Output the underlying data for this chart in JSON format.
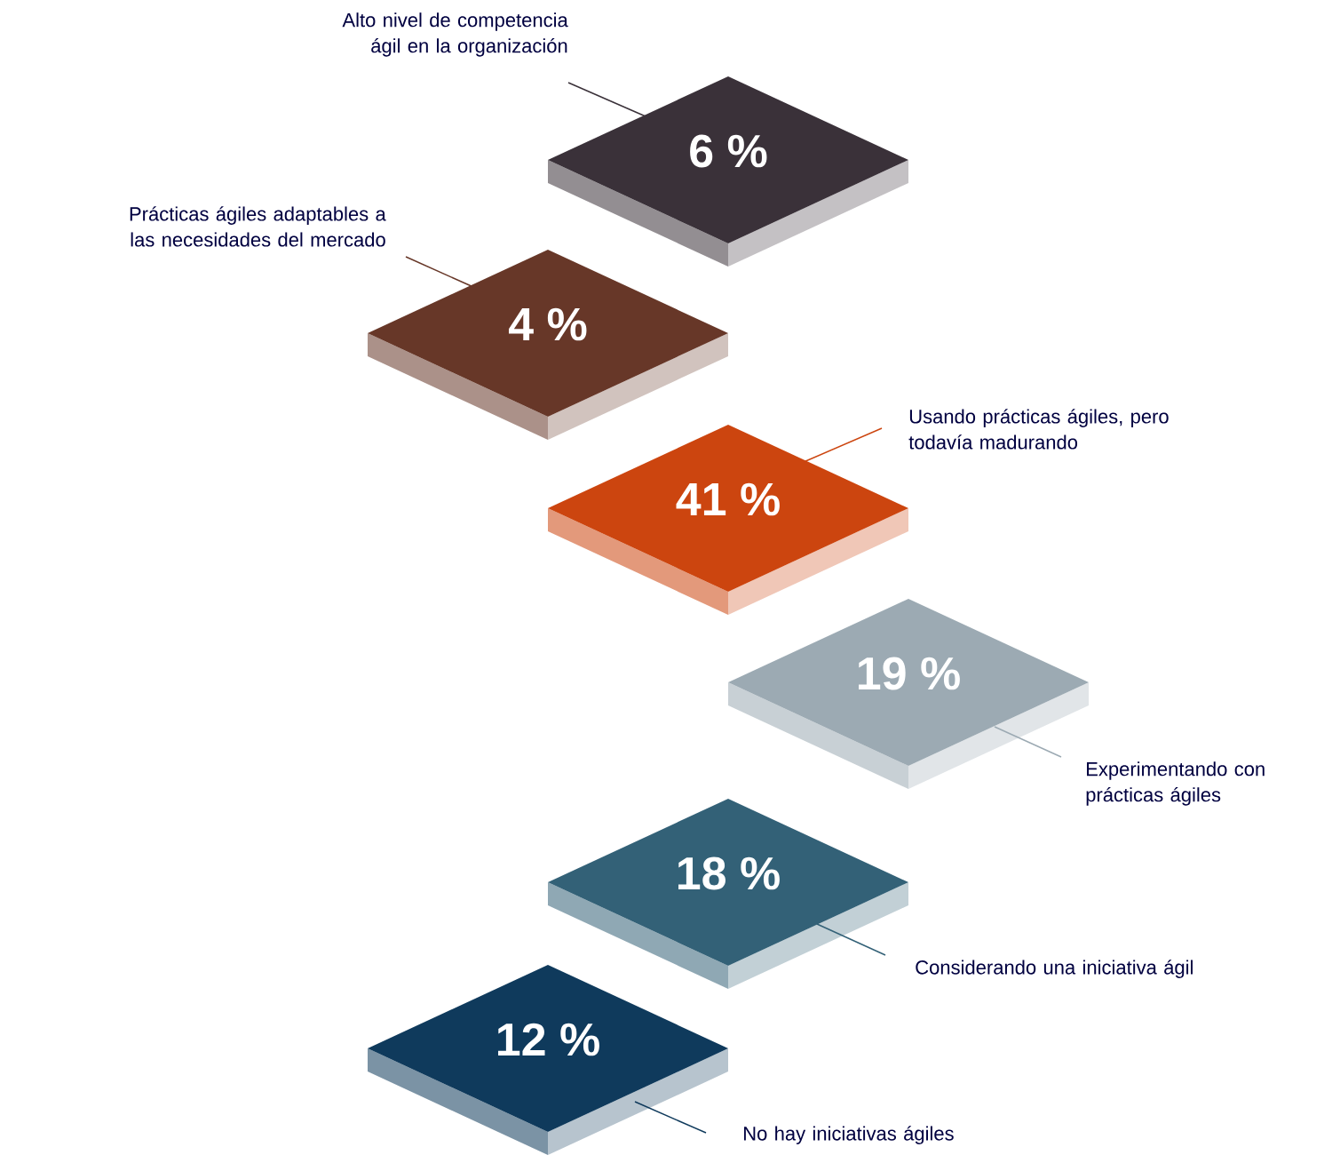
{
  "chart_data": {
    "type": "other",
    "categories": [
      "Alto nivel de competencia ágil en la organización",
      "Prácticas ágiles adaptables a las necesidades del mercado",
      "Usando prácticas ágiles, pero todavía madurando",
      "Experimentando con prácticas ágiles",
      "Considerando una iniciativa ágil",
      "No hay iniciativas ágiles"
    ],
    "values": [
      6,
      4,
      41,
      19,
      18,
      12
    ],
    "data_labels": true,
    "ylabel": "%",
    "colors": [
      "#3a3139",
      "#673728",
      "#cc450f",
      "#9caab3",
      "#336177",
      "#0f3a5c"
    ]
  }
}
